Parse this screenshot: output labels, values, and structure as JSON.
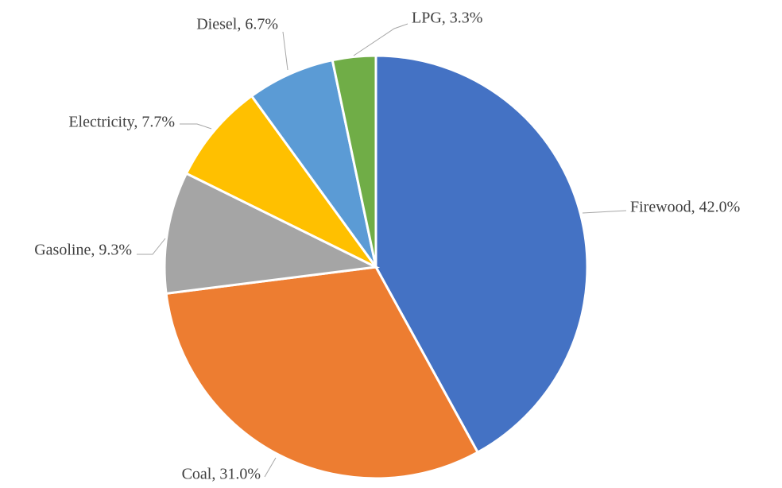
{
  "chart_data": {
    "type": "pie",
    "values": [
      42.0,
      31.0,
      9.3,
      7.7,
      6.7,
      3.3
    ],
    "value_labels": [
      "Firewood, 42.0%",
      "Coal, 31.0%",
      "Gasoline, 9.3%",
      "Electricity, 7.7%",
      "Diesel, 6.7%",
      "LPG, 3.3%"
    ],
    "colors": [
      "#4472c4",
      "#ed7d31",
      "#a5a5a5",
      "#ffc000",
      "#5b9bd5",
      "#70ad47"
    ]
  }
}
